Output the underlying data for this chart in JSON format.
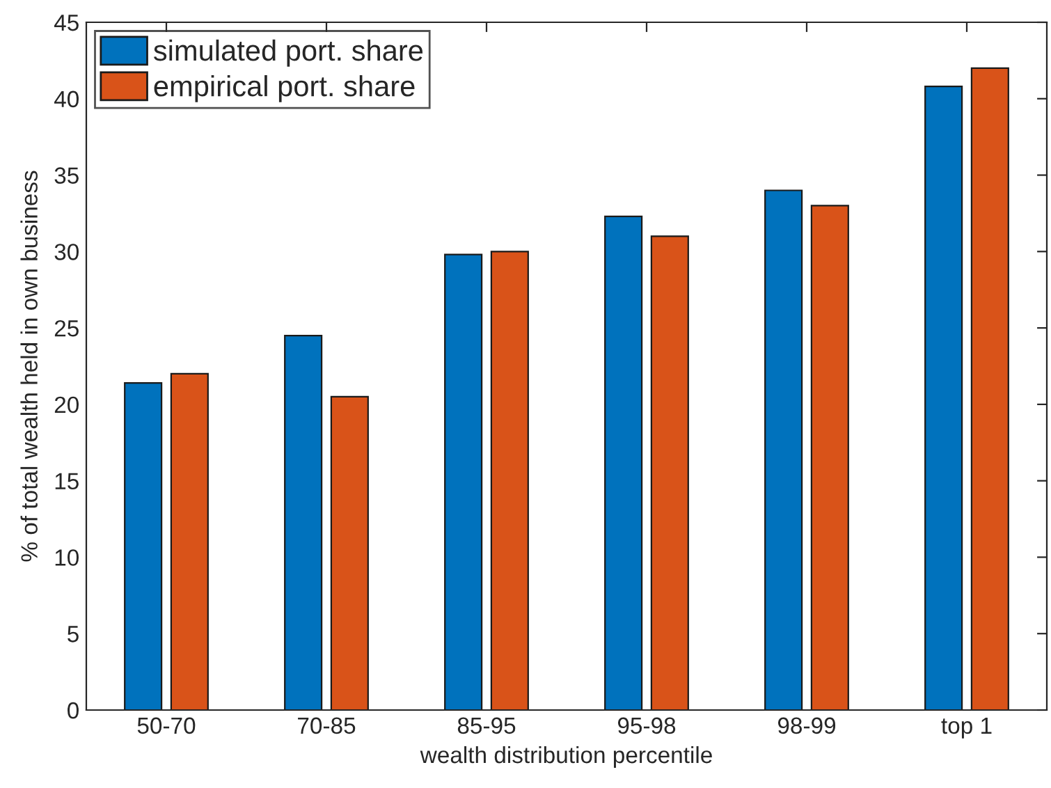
{
  "chart_data": {
    "type": "bar",
    "xlabel": "wealth distribution percentile",
    "ylabel": "% of total wealth held in own business",
    "categories": [
      "50-70",
      "70-85",
      "85-95",
      "95-98",
      "98-99",
      "top 1"
    ],
    "series": [
      {
        "name": "simulated port. share",
        "color": "#0072bd",
        "values": [
          21.4,
          24.5,
          29.8,
          32.3,
          34,
          40.8
        ]
      },
      {
        "name": "empirical port. share",
        "color": "#d95319",
        "values": [
          22,
          20.5,
          30,
          31,
          33,
          42
        ]
      }
    ],
    "ylim": [
      0,
      45
    ],
    "yticks": [
      0,
      5,
      10,
      15,
      20,
      25,
      30,
      35,
      40,
      45
    ],
    "grid": false,
    "legend": "top left"
  }
}
